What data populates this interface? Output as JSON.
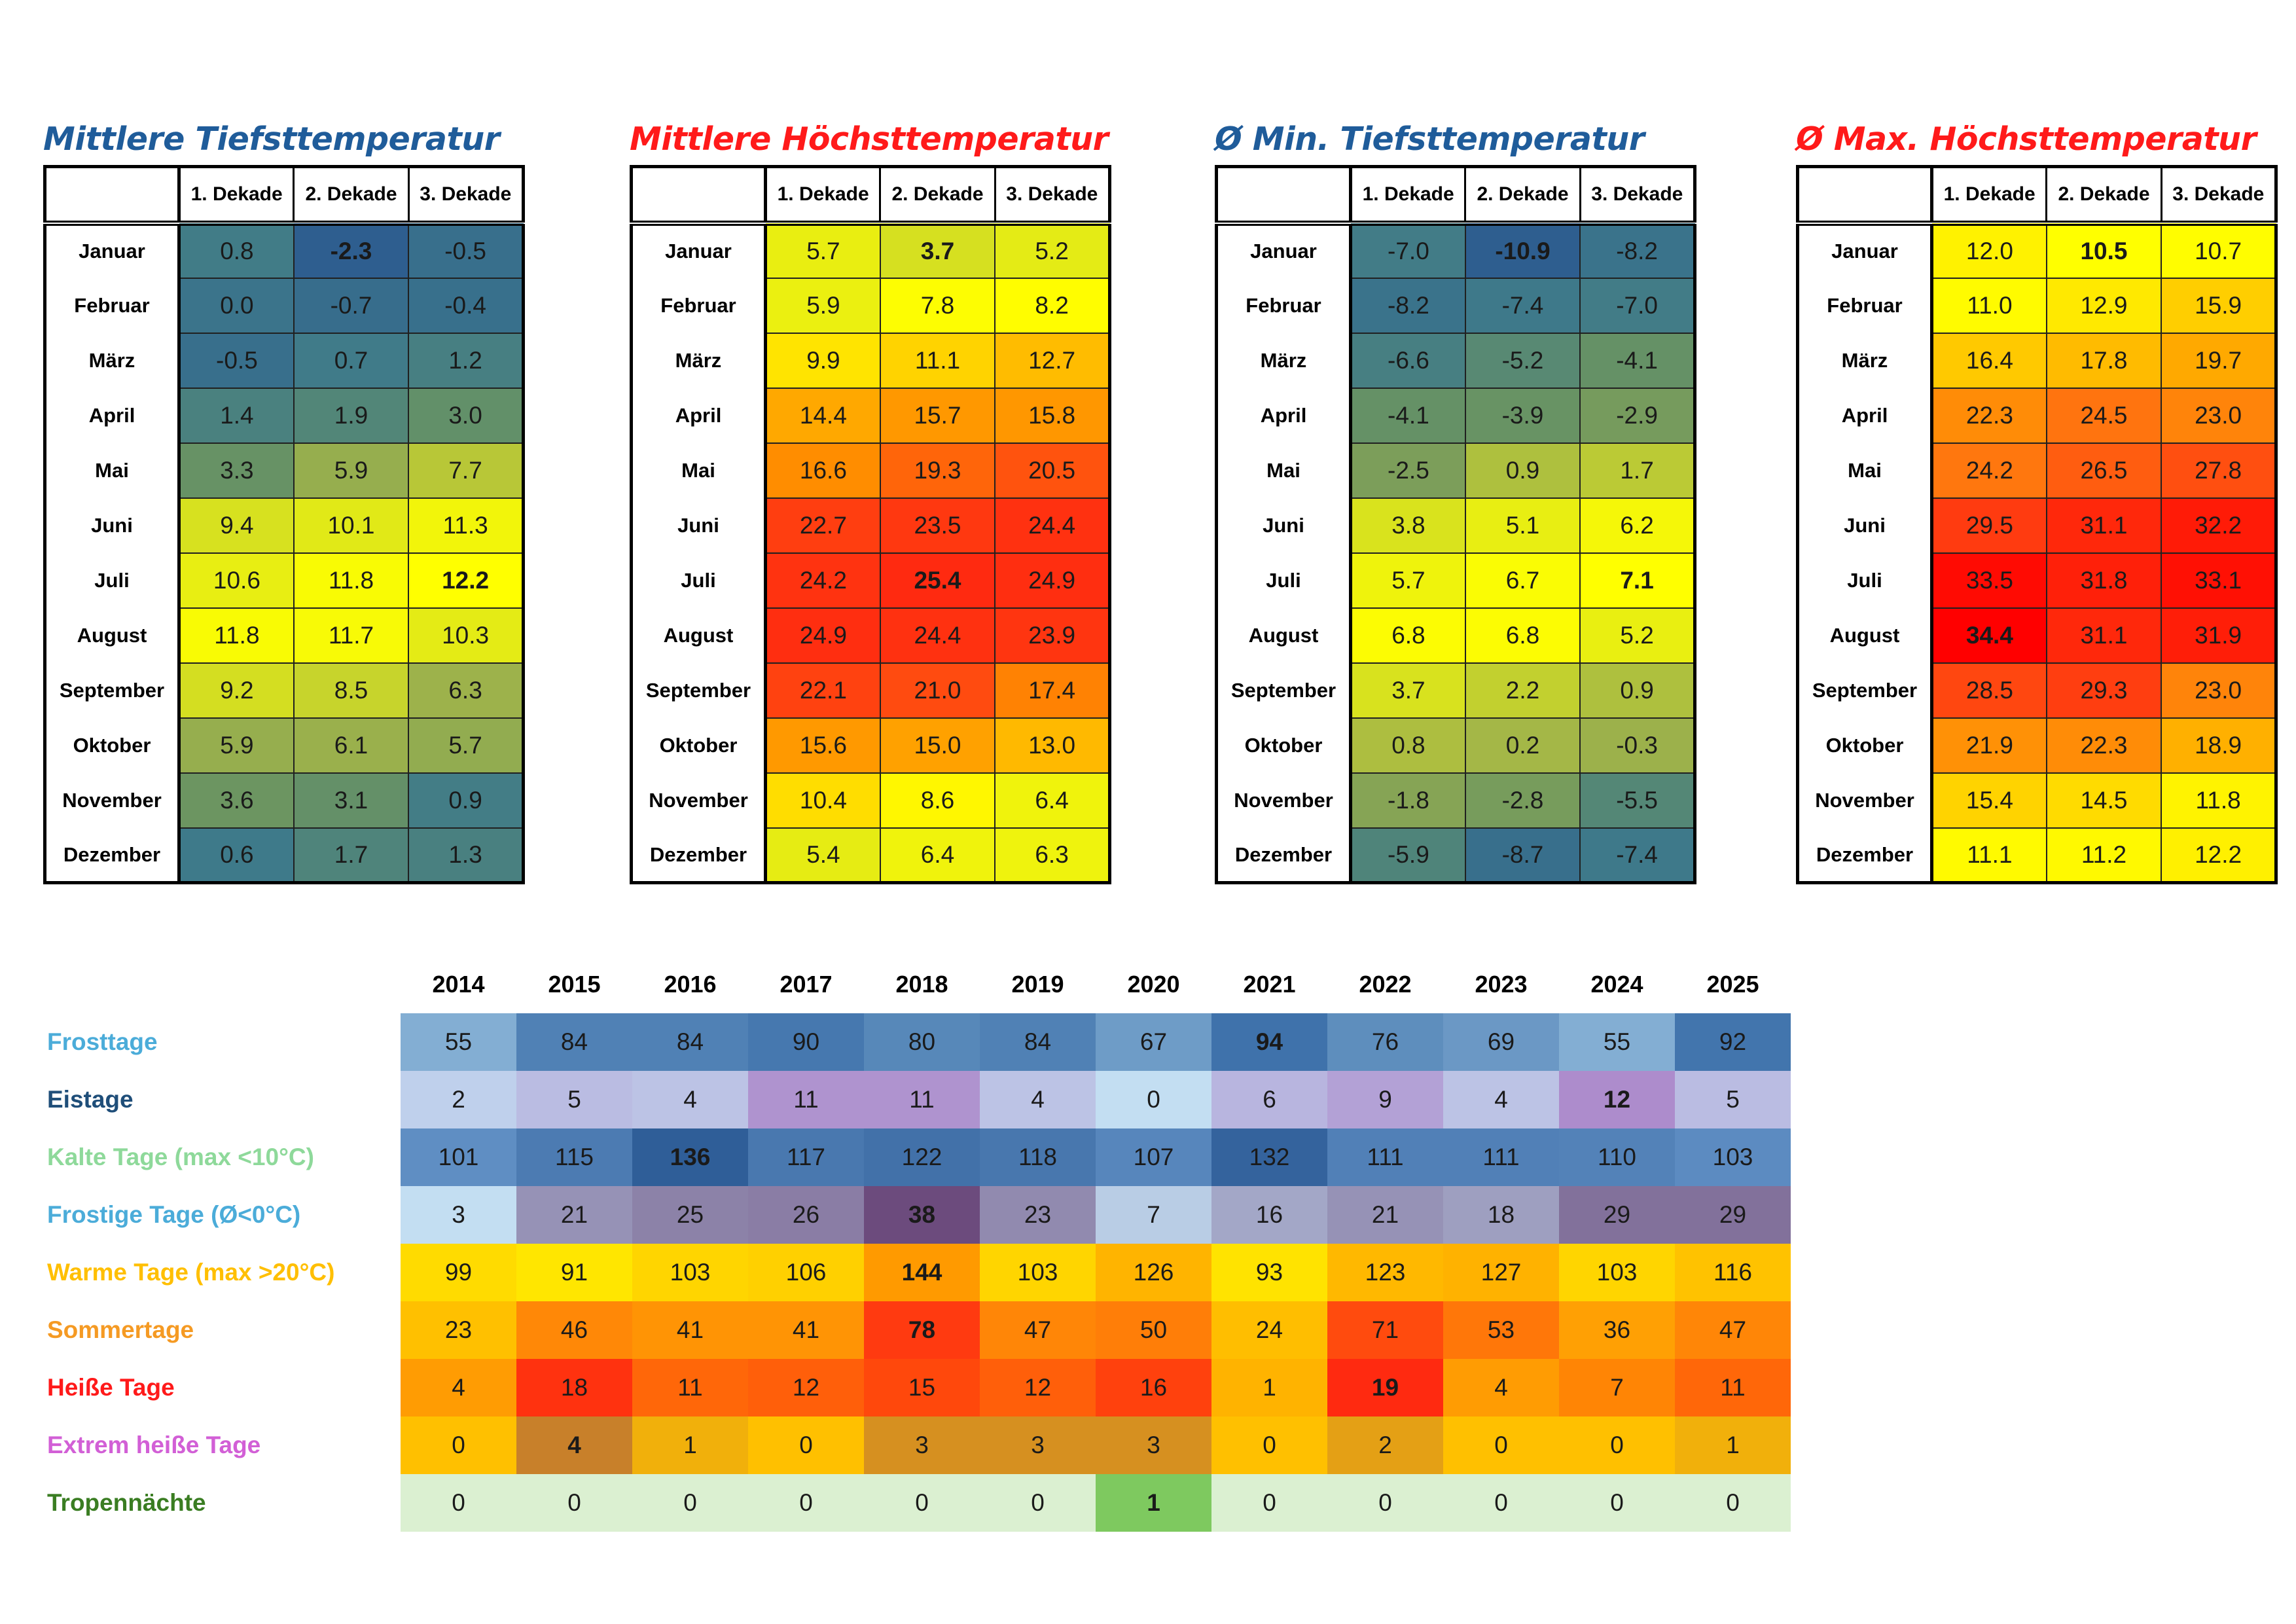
{
  "columns": [
    "1. Dekade",
    "2. Dekade",
    "3. Dekade"
  ],
  "months": [
    "Januar",
    "Februar",
    "März",
    "April",
    "Mai",
    "Juni",
    "Juli",
    "August",
    "September",
    "Oktober",
    "November",
    "Dezember"
  ],
  "colors": {
    "blue_title": "#1f5c9a",
    "red_title": "#ff1a1a",
    "scale_cold": [
      "#2e5e8f",
      "#3e7a8a",
      "#6a9462",
      "#9fb34a",
      "#d6e020",
      "#ffff00"
    ],
    "scale_warm": [
      "#ffff00",
      "#ffd400",
      "#ffa500",
      "#ff7010",
      "#ff3a10",
      "#ff0000"
    ]
  },
  "chart_data": [
    {
      "type": "heatmap",
      "title": "Mittlere Tiefsttemperatur",
      "title_color": "#1f5c9a",
      "scale": "cold",
      "categories": [
        "Januar",
        "Februar",
        "März",
        "April",
        "Mai",
        "Juni",
        "Juli",
        "August",
        "September",
        "Oktober",
        "November",
        "Dezember"
      ],
      "columns": [
        "1. Dekade",
        "2. Dekade",
        "3. Dekade"
      ],
      "range": [
        -2.3,
        12.2
      ],
      "rows": [
        [
          "0.8",
          "-2.3",
          "-0.5"
        ],
        [
          "0.0",
          "-0.7",
          "-0.4"
        ],
        [
          "-0.5",
          "0.7",
          "1.2"
        ],
        [
          "1.4",
          "1.9",
          "3.0"
        ],
        [
          "3.3",
          "5.9",
          "7.7"
        ],
        [
          "9.4",
          "10.1",
          "11.3"
        ],
        [
          "10.6",
          "11.8",
          "12.2"
        ],
        [
          "11.8",
          "11.7",
          "10.3"
        ],
        [
          "9.2",
          "8.5",
          "6.3"
        ],
        [
          "5.9",
          "6.1",
          "5.7"
        ],
        [
          "3.6",
          "3.1",
          "0.9"
        ],
        [
          "0.6",
          "1.7",
          "1.3"
        ]
      ],
      "bold": [
        "-2.3",
        "12.2"
      ]
    },
    {
      "type": "heatmap",
      "title": "Mittlere Höchsttemperatur",
      "title_color": "#ff1a1a",
      "scale": "mid",
      "categories": [
        "Januar",
        "Februar",
        "März",
        "April",
        "Mai",
        "Juni",
        "Juli",
        "August",
        "September",
        "Oktober",
        "November",
        "Dezember"
      ],
      "columns": [
        "1. Dekade",
        "2. Dekade",
        "3. Dekade"
      ],
      "range": [
        3.7,
        25.4
      ],
      "rows": [
        [
          "5.7",
          "3.7",
          "5.2"
        ],
        [
          "5.9",
          "7.8",
          "8.2"
        ],
        [
          "9.9",
          "11.1",
          "12.7"
        ],
        [
          "14.4",
          "15.7",
          "15.8"
        ],
        [
          "16.6",
          "19.3",
          "20.5"
        ],
        [
          "22.7",
          "23.5",
          "24.4"
        ],
        [
          "24.2",
          "25.4",
          "24.9"
        ],
        [
          "24.9",
          "24.4",
          "23.9"
        ],
        [
          "22.1",
          "21.0",
          "17.4"
        ],
        [
          "15.6",
          "15.0",
          "13.0"
        ],
        [
          "10.4",
          "8.6",
          "6.4"
        ],
        [
          "5.4",
          "6.4",
          "6.3"
        ]
      ],
      "bold": [
        "3.7",
        "25.4"
      ]
    },
    {
      "type": "heatmap",
      "title": "Ø Min. Tiefsttemperatur",
      "title_color": "#1f5c9a",
      "scale": "cold",
      "categories": [
        "Januar",
        "Februar",
        "März",
        "April",
        "Mai",
        "Juni",
        "Juli",
        "August",
        "September",
        "Oktober",
        "November",
        "Dezember"
      ],
      "columns": [
        "1. Dekade",
        "2. Dekade",
        "3. Dekade"
      ],
      "range": [
        -10.9,
        7.1
      ],
      "rows": [
        [
          "-7.0",
          "-10.9",
          "-8.2"
        ],
        [
          "-8.2",
          "-7.4",
          "-7.0"
        ],
        [
          "-6.6",
          "-5.2",
          "-4.1"
        ],
        [
          "-4.1",
          "-3.9",
          "-2.9"
        ],
        [
          "-2.5",
          "0.9",
          "1.7"
        ],
        [
          "3.8",
          "5.1",
          "6.2"
        ],
        [
          "5.7",
          "6.7",
          "7.1"
        ],
        [
          "6.8",
          "6.8",
          "5.2"
        ],
        [
          "3.7",
          "2.2",
          "0.9"
        ],
        [
          "0.8",
          "0.2",
          "-0.3"
        ],
        [
          "-1.8",
          "-2.8",
          "-5.5"
        ],
        [
          "-5.9",
          "-8.7",
          "-7.4"
        ]
      ],
      "bold": [
        "-10.9",
        "7.1"
      ]
    },
    {
      "type": "heatmap",
      "title": "Ø Max. Höchsttemperatur",
      "title_color": "#ff1a1a",
      "scale": "warm",
      "categories": [
        "Januar",
        "Februar",
        "März",
        "April",
        "Mai",
        "Juni",
        "Juli",
        "August",
        "September",
        "Oktober",
        "November",
        "Dezember"
      ],
      "columns": [
        "1. Dekade",
        "2. Dekade",
        "3. Dekade"
      ],
      "range": [
        10.5,
        34.4
      ],
      "rows": [
        [
          "12.0",
          "10.5",
          "10.7"
        ],
        [
          "11.0",
          "12.9",
          "15.9"
        ],
        [
          "16.4",
          "17.8",
          "19.7"
        ],
        [
          "22.3",
          "24.5",
          "23.0"
        ],
        [
          "24.2",
          "26.5",
          "27.8"
        ],
        [
          "29.5",
          "31.1",
          "32.2"
        ],
        [
          "33.5",
          "31.8",
          "33.1"
        ],
        [
          "34.4",
          "31.1",
          "31.9"
        ],
        [
          "28.5",
          "29.3",
          "23.0"
        ],
        [
          "21.9",
          "22.3",
          "18.9"
        ],
        [
          "15.4",
          "14.5",
          "11.8"
        ],
        [
          "11.1",
          "11.2",
          "12.2"
        ]
      ],
      "bold": [
        "10.5",
        "34.4"
      ]
    },
    {
      "type": "heatmap",
      "title": "",
      "x": [
        "2014",
        "2015",
        "2016",
        "2017",
        "2018",
        "2019",
        "2020",
        "2021",
        "2022",
        "2023",
        "2024",
        "2025"
      ],
      "series": [
        {
          "name": "Frosttage",
          "label_color": "#4bacd9",
          "scale": [
            "#83aed3",
            "#3f72ab"
          ],
          "values": [
            55,
            84,
            84,
            90,
            80,
            84,
            67,
            94,
            76,
            69,
            55,
            92
          ],
          "bold_index": 7
        },
        {
          "name": "Eistage",
          "label_color": "#1f4e79",
          "scale": [
            "#c3def2",
            "#ad8ccc"
          ],
          "values": [
            2,
            5,
            4,
            11,
            11,
            4,
            0,
            6,
            9,
            4,
            12,
            5
          ],
          "bold_index": 10
        },
        {
          "name": "Kalte Tage (max <10°C)",
          "label_color": "#8ed99a",
          "scale": [
            "#5f8ec3",
            "#2f5e98"
          ],
          "values": [
            101,
            115,
            136,
            117,
            122,
            118,
            107,
            132,
            111,
            111,
            110,
            103
          ],
          "bold_index": 2
        },
        {
          "name": "Frostige Tage (Ø<0°C)",
          "label_color": "#4bacd9",
          "scale": [
            "#c3def2",
            "#6c4b7d"
          ],
          "values": [
            3,
            21,
            25,
            26,
            38,
            23,
            7,
            16,
            21,
            18,
            29,
            29
          ],
          "bold_index": 4
        },
        {
          "name": "Warme Tage (max >20°C)",
          "label_color": "#ffbf00",
          "scale": [
            "#ffe600",
            "#ff9a00"
          ],
          "values": [
            99,
            91,
            103,
            106,
            144,
            103,
            126,
            93,
            123,
            127,
            103,
            116
          ],
          "bold_index": 4
        },
        {
          "name": "Sommertage",
          "label_color": "#f59a23",
          "scale": [
            "#ffc000",
            "#ff3a10"
          ],
          "values": [
            23,
            46,
            41,
            41,
            78,
            47,
            50,
            24,
            71,
            53,
            36,
            47
          ],
          "bold_index": 4
        },
        {
          "name": "Heiße Tage",
          "label_color": "#ff1a1a",
          "scale": [
            "#ffb300",
            "#ff2a10"
          ],
          "values": [
            4,
            18,
            11,
            12,
            15,
            12,
            16,
            1,
            19,
            4,
            7,
            11
          ],
          "bold_index": 8
        },
        {
          "name": "Extrem heiße Tage",
          "label_color": "#d25fd6",
          "scale": [
            "#ffc000",
            "#c8802a"
          ],
          "values": [
            0,
            4,
            1,
            0,
            3,
            3,
            3,
            0,
            2,
            0,
            0,
            1
          ],
          "bold_index": 1
        },
        {
          "name": "Tropennächte",
          "label_color": "#3a7d22",
          "scale": [
            "#dbf0d1",
            "#7ec95f"
          ],
          "values": [
            0,
            0,
            0,
            0,
            0,
            0,
            1,
            0,
            0,
            0,
            0,
            0
          ],
          "bold_index": 6
        }
      ]
    }
  ]
}
